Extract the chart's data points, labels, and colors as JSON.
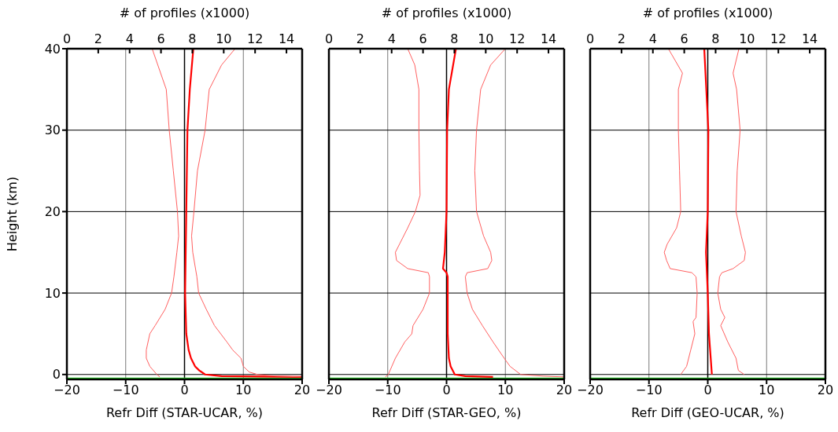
{
  "chart_data": [
    {
      "type": "line",
      "xlabel": "Refr Diff (STAR-UCAR, %)",
      "ylabel": "Height (km)",
      "x2label": "# of profiles (x1000)",
      "xlim": [
        -20,
        20
      ],
      "xticks": [
        -20,
        -10,
        0,
        10,
        20
      ],
      "x2lim": [
        0,
        15
      ],
      "x2ticks": [
        0,
        2,
        4,
        6,
        8,
        10,
        12,
        14
      ],
      "ylim": [
        -0.6,
        40
      ],
      "yticks": [
        0,
        10,
        20,
        30,
        40
      ],
      "grid": true,
      "ref_lines": [
        {
          "axis": "x",
          "value": 0,
          "color": "#000000"
        },
        {
          "axis": "y",
          "value": -0.5,
          "color": "#22cc22"
        }
      ],
      "series": [
        {
          "color": "#ff6060",
          "x": [
            -5.5,
            -3.1,
            -2.6,
            -1.9,
            -1.2,
            -1.0,
            -1.3,
            -1.8,
            -2.2,
            -3.3,
            -5.0,
            -5.9,
            -6.5,
            -6.5,
            -5.9,
            -4.7,
            -4.2
          ],
          "values": [
            40,
            35,
            30,
            25,
            20,
            17,
            15,
            12,
            10,
            8,
            6,
            5,
            3,
            2,
            1,
            0,
            -0.3
          ]
        },
        {
          "color": "#ff0000",
          "x": [
            1.5,
            0.9,
            0.5,
            0.3,
            0.1,
            0.3,
            0.7,
            1.1,
            1.8,
            2.5,
            3.5,
            6.3,
            20
          ],
          "values": [
            40,
            35,
            30,
            20,
            10,
            5,
            3,
            2,
            1,
            0.5,
            0,
            -0.2,
            -0.3
          ]
        },
        {
          "color": "#ff6060",
          "x": [
            8.6,
            6.3,
            4.2,
            3.5,
            2.2,
            1.6,
            1.2,
            1.4,
            2.1,
            2.4,
            3.7,
            5.1,
            7.2,
            8.2,
            9.6,
            10.0,
            11.0,
            12.4,
            15.7,
            20
          ],
          "values": [
            40,
            38,
            35,
            30,
            25,
            20,
            17,
            15,
            12,
            10,
            8,
            6,
            4,
            3,
            2,
            1,
            0.3,
            0,
            -0.2,
            -0.3
          ]
        }
      ]
    },
    {
      "type": "line",
      "xlabel": "Refr Diff (STAR-GEO, %)",
      "x2label": "# of profiles (x1000)",
      "xlim": [
        -20,
        20
      ],
      "xticks": [
        -20,
        -10,
        0,
        10,
        20
      ],
      "x2lim": [
        0,
        15
      ],
      "x2ticks": [
        0,
        2,
        4,
        6,
        8,
        10,
        12,
        14
      ],
      "ylim": [
        -0.6,
        40
      ],
      "yticks": [
        0,
        10,
        20,
        30,
        40
      ],
      "grid": true,
      "tick_labels": "x",
      "ref_lines": [
        {
          "axis": "x",
          "value": 0,
          "color": "#000000"
        },
        {
          "axis": "y",
          "value": -0.5,
          "color": "#22cc22"
        }
      ],
      "series": [
        {
          "color": "#ff6060",
          "x": [
            -6.6,
            -5.4,
            -4.7,
            -4.7,
            -4.6,
            -4.5,
            -5.3,
            -6.6,
            -8.0,
            -8.7,
            -8.5,
            -6.6,
            -3.1,
            -2.9,
            -2.9,
            -4.0,
            -5.7,
            -5.9,
            -7.1,
            -8.7,
            -9.9,
            -10.4
          ],
          "values": [
            40,
            38,
            35,
            30,
            25,
            22,
            20,
            18,
            16,
            15,
            14,
            13,
            12.5,
            12,
            10,
            8,
            6,
            5,
            4,
            2,
            0,
            -0.3
          ]
        },
        {
          "color": "#ff0000",
          "x": [
            1.6,
            0.4,
            0.1,
            0,
            -0.3,
            -0.6,
            0,
            0.2,
            0.2,
            0.4,
            0.7,
            1.4,
            3.2,
            7.9
          ],
          "values": [
            40,
            35,
            30,
            20,
            15,
            13,
            12.5,
            12,
            5,
            2,
            1,
            0,
            -0.2,
            -0.3
          ]
        },
        {
          "color": "#ff6060",
          "x": [
            10.0,
            7.5,
            5.8,
            5.1,
            4.8,
            5.1,
            6.3,
            7.5,
            7.7,
            7.0,
            3.5,
            3.2,
            3.5,
            4.4,
            6.1,
            7.9,
            9.8,
            10.8,
            12.6,
            16.4,
            20
          ],
          "values": [
            40,
            38,
            35,
            30,
            25,
            20,
            17,
            15,
            14,
            13,
            12.5,
            12,
            10,
            8,
            6,
            4,
            2,
            1,
            0,
            -0.2,
            -0.3
          ]
        }
      ]
    },
    {
      "type": "line",
      "xlabel": "Refr Diff (GEO-UCAR, %)",
      "x2label": "# of profiles (x1000)",
      "xlim": [
        -20,
        20
      ],
      "xticks": [
        -20,
        -10,
        0,
        10,
        20
      ],
      "x2lim": [
        0,
        15
      ],
      "x2ticks": [
        0,
        2,
        4,
        6,
        8,
        10,
        12,
        14
      ],
      "ylim": [
        -0.6,
        40
      ],
      "yticks": [
        0,
        10,
        20,
        30,
        40
      ],
      "grid": true,
      "tick_labels": "x",
      "ref_lines": [
        {
          "axis": "x",
          "value": 0,
          "color": "#000000"
        },
        {
          "axis": "y",
          "value": -0.5,
          "color": "#22cc22"
        }
      ],
      "series": [
        {
          "color": "#ff6060",
          "x": [
            -6.7,
            -4.3,
            -5.0,
            -5.0,
            -4.8,
            -4.6,
            -5.3,
            -6.9,
            -7.4,
            -7.0,
            -6.4,
            -2.7,
            -2.0,
            -1.8,
            -2.0,
            -2.5,
            -2.2,
            -2.9,
            -3.6,
            -4.6
          ],
          "values": [
            40,
            37,
            35,
            30,
            25,
            20,
            18,
            16,
            15,
            14,
            13,
            12.5,
            12,
            10,
            7,
            6.5,
            5,
            3,
            1,
            0
          ]
        },
        {
          "color": "#ff0000",
          "x": [
            -0.6,
            0.1,
            0,
            -0.3,
            0,
            0.2,
            0.5,
            0.7
          ],
          "values": [
            40,
            30,
            20,
            15,
            10,
            5,
            2,
            0
          ]
        },
        {
          "color": "#ff6060",
          "x": [
            5.3,
            4.3,
            4.9,
            5.5,
            5.0,
            4.8,
            5.7,
            6.4,
            6.2,
            4.3,
            2.4,
            2.0,
            1.7,
            2.2,
            2.9,
            2.2,
            3.4,
            4.8,
            5.2,
            6.2
          ],
          "values": [
            40,
            37,
            35,
            30,
            25,
            20,
            17,
            15,
            14,
            13,
            12.5,
            12,
            10,
            8,
            7,
            6,
            4,
            2,
            0.5,
            0
          ]
        }
      ]
    }
  ]
}
